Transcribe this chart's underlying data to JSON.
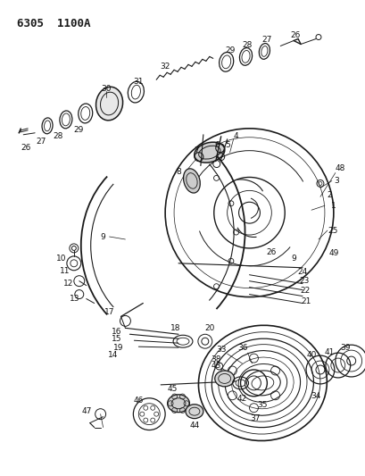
{
  "title": "6305 1100A",
  "bg_color": "#ffffff",
  "line_color": "#1a1a1a",
  "text_color": "#111111",
  "label_fontsize": 6.5,
  "fig_width": 4.1,
  "fig_height": 5.33,
  "dpi": 100
}
